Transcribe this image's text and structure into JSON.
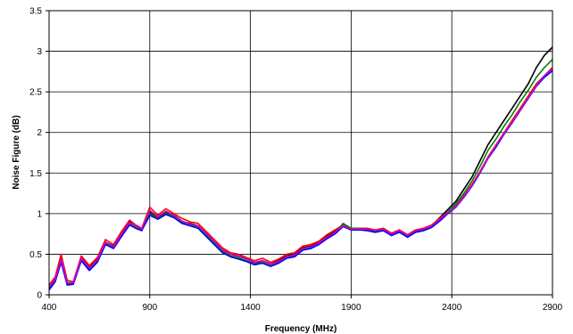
{
  "chart_data": {
    "type": "line",
    "title": "",
    "xlabel": "Frequency (MHz)",
    "ylabel": "Noise Figure (dB)",
    "xlim": [
      400,
      2900
    ],
    "ylim": [
      0,
      3.5
    ],
    "x_ticks": [
      "400",
      "900",
      "1400",
      "1900",
      "2400",
      "2900"
    ],
    "y_ticks": [
      "0",
      "0.5",
      "1",
      "1.5",
      "2",
      "2.5",
      "3",
      "3.5"
    ],
    "grid": true,
    "legend": "none",
    "x": [
      400,
      430,
      460,
      490,
      520,
      560,
      600,
      640,
      680,
      720,
      760,
      800,
      830,
      860,
      900,
      940,
      980,
      1020,
      1060,
      1100,
      1140,
      1180,
      1220,
      1260,
      1300,
      1340,
      1380,
      1420,
      1460,
      1500,
      1540,
      1580,
      1620,
      1660,
      1700,
      1740,
      1780,
      1820,
      1860,
      1900,
      1940,
      1980,
      2020,
      2060,
      2100,
      2140,
      2180,
      2220,
      2260,
      2300,
      2340,
      2380,
      2420,
      2460,
      2500,
      2540,
      2580,
      2620,
      2660,
      2700,
      2740,
      2780,
      2820,
      2860,
      2900
    ],
    "series": [
      {
        "color": "#000000",
        "values": [
          0.1,
          0.2,
          0.45,
          0.15,
          0.15,
          0.45,
          0.35,
          0.45,
          0.65,
          0.6,
          0.75,
          0.9,
          0.85,
          0.8,
          1.02,
          0.95,
          1.02,
          0.98,
          0.9,
          0.88,
          0.85,
          0.75,
          0.65,
          0.55,
          0.5,
          0.48,
          0.45,
          0.38,
          0.42,
          0.38,
          0.42,
          0.48,
          0.5,
          0.58,
          0.6,
          0.65,
          0.72,
          0.78,
          0.85,
          0.8,
          0.8,
          0.8,
          0.78,
          0.8,
          0.75,
          0.78,
          0.72,
          0.78,
          0.8,
          0.85,
          0.95,
          1.05,
          1.15,
          1.3,
          1.45,
          1.65,
          1.85,
          2.0,
          2.15,
          2.3,
          2.45,
          2.6,
          2.8,
          2.95,
          3.05
        ]
      },
      {
        "color": "#ff0000",
        "values": [
          0.12,
          0.22,
          0.5,
          0.18,
          0.16,
          0.48,
          0.36,
          0.46,
          0.68,
          0.62,
          0.78,
          0.92,
          0.86,
          0.82,
          1.08,
          0.98,
          1.06,
          1.0,
          0.94,
          0.9,
          0.88,
          0.78,
          0.68,
          0.58,
          0.52,
          0.5,
          0.46,
          0.42,
          0.45,
          0.4,
          0.44,
          0.5,
          0.52,
          0.6,
          0.62,
          0.66,
          0.74,
          0.8,
          0.86,
          0.82,
          0.82,
          0.82,
          0.8,
          0.82,
          0.76,
          0.8,
          0.74,
          0.8,
          0.82,
          0.86,
          0.94,
          1.02,
          1.1,
          1.22,
          1.36,
          1.52,
          1.7,
          1.85,
          2.0,
          2.15,
          2.3,
          2.45,
          2.6,
          2.7,
          2.8
        ]
      },
      {
        "color": "#008000",
        "values": [
          0.08,
          0.18,
          0.42,
          0.14,
          0.14,
          0.44,
          0.32,
          0.42,
          0.64,
          0.58,
          0.74,
          0.88,
          0.84,
          0.8,
          1.0,
          0.94,
          1.0,
          0.96,
          0.9,
          0.86,
          0.84,
          0.74,
          0.64,
          0.54,
          0.48,
          0.46,
          0.42,
          0.38,
          0.4,
          0.36,
          0.4,
          0.46,
          0.48,
          0.56,
          0.58,
          0.64,
          0.7,
          0.76,
          0.88,
          0.82,
          0.82,
          0.8,
          0.78,
          0.8,
          0.74,
          0.78,
          0.72,
          0.78,
          0.8,
          0.84,
          0.92,
          1.02,
          1.12,
          1.25,
          1.4,
          1.58,
          1.78,
          1.92,
          2.08,
          2.22,
          2.38,
          2.52,
          2.68,
          2.8,
          2.9
        ]
      },
      {
        "color": "#0000ff",
        "values": [
          0.06,
          0.16,
          0.4,
          0.12,
          0.13,
          0.42,
          0.3,
          0.4,
          0.62,
          0.57,
          0.72,
          0.86,
          0.82,
          0.79,
          0.98,
          0.93,
          0.99,
          0.95,
          0.88,
          0.85,
          0.82,
          0.72,
          0.62,
          0.52,
          0.47,
          0.44,
          0.41,
          0.37,
          0.39,
          0.35,
          0.39,
          0.45,
          0.47,
          0.55,
          0.57,
          0.62,
          0.69,
          0.75,
          0.84,
          0.8,
          0.8,
          0.79,
          0.77,
          0.79,
          0.73,
          0.77,
          0.71,
          0.77,
          0.79,
          0.83,
          0.91,
          1.0,
          1.08,
          1.2,
          1.34,
          1.5,
          1.68,
          1.82,
          1.98,
          2.12,
          2.27,
          2.42,
          2.57,
          2.68,
          2.76
        ]
      },
      {
        "color": "#cc00cc",
        "values": [
          0.1,
          0.19,
          0.44,
          0.15,
          0.15,
          0.45,
          0.33,
          0.43,
          0.65,
          0.59,
          0.75,
          0.89,
          0.85,
          0.81,
          1.04,
          0.96,
          1.03,
          0.98,
          0.91,
          0.87,
          0.85,
          0.76,
          0.66,
          0.56,
          0.5,
          0.48,
          0.44,
          0.4,
          0.42,
          0.38,
          0.41,
          0.47,
          0.49,
          0.57,
          0.59,
          0.64,
          0.71,
          0.77,
          0.85,
          0.81,
          0.81,
          0.81,
          0.79,
          0.81,
          0.75,
          0.79,
          0.73,
          0.79,
          0.81,
          0.85,
          0.93,
          1.01,
          1.09,
          1.21,
          1.35,
          1.51,
          1.69,
          1.84,
          1.99,
          2.13,
          2.28,
          2.43,
          2.58,
          2.7,
          2.78
        ]
      }
    ]
  }
}
